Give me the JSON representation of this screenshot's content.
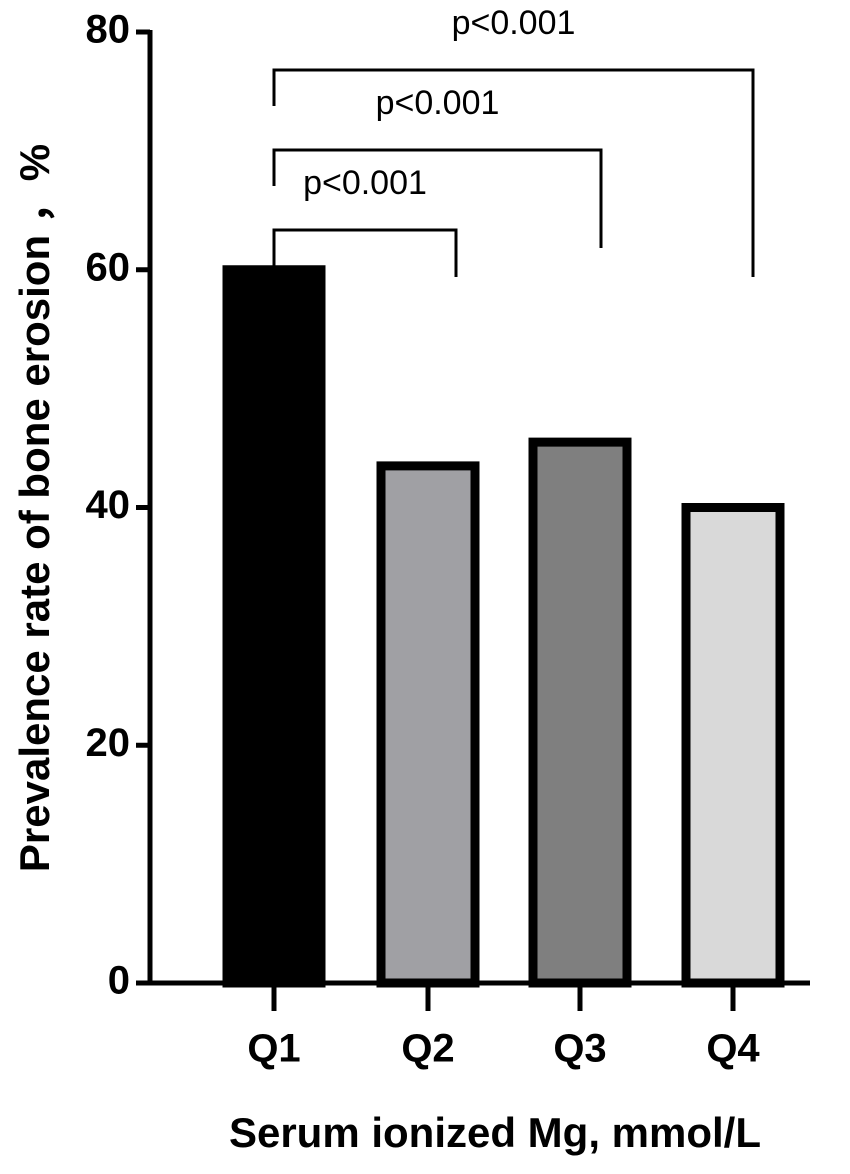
{
  "chart_data": {
    "type": "bar",
    "x_label": "Serum ionized Mg, mmol/L",
    "y_label": "Prevalence rate of bone erosion ，%",
    "categories": [
      "Q1",
      "Q2",
      "Q3",
      "Q4"
    ],
    "values": [
      60,
      43.5,
      45.5,
      40
    ],
    "colors": [
      "#000000",
      "#a0a0a4",
      "#7f7f7f",
      "#d9d9d9"
    ],
    "ylim": [
      0,
      80
    ],
    "yticks": [
      0,
      20,
      40,
      60,
      80
    ],
    "grid": false,
    "annotations": [
      "p<0.001",
      "p<0.001",
      "p<0.001"
    ]
  }
}
